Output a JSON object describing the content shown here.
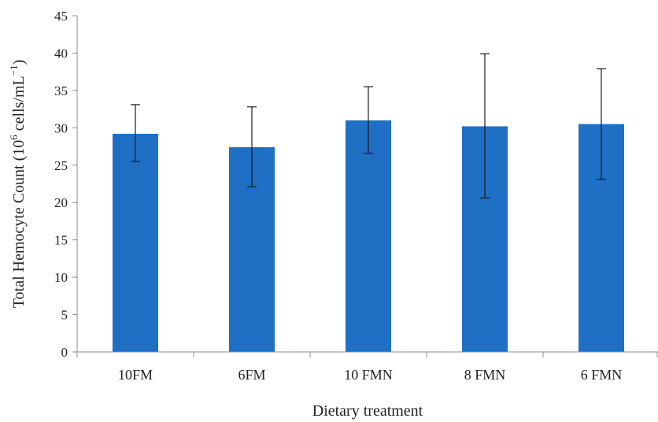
{
  "chart_data": {
    "type": "bar",
    "categories": [
      "10FM",
      "6FM",
      "10 FMN",
      "8 FMN",
      "6 FMN"
    ],
    "series": [
      {
        "values": [
          29.2,
          27.4,
          31.0,
          30.2,
          30.5
        ],
        "error_low": [
          25.5,
          22.1,
          26.6,
          20.6,
          23.1
        ],
        "error_high": [
          33.1,
          32.8,
          35.5,
          39.9,
          37.9
        ]
      }
    ],
    "xlabel": "Dietary treatment",
    "ylabel_main": "Total Hemocyte Count (10",
    "ylabel_sup1": "6",
    "ylabel_mid": " cells/mL",
    "ylabel_sup2": "−1",
    "ylabel_end": ")",
    "ylim": [
      0,
      45
    ],
    "yticks": [
      0,
      5,
      10,
      15,
      20,
      25,
      30,
      35,
      40,
      45
    ],
    "grid": false,
    "bar_color": "#1f6fc5"
  }
}
